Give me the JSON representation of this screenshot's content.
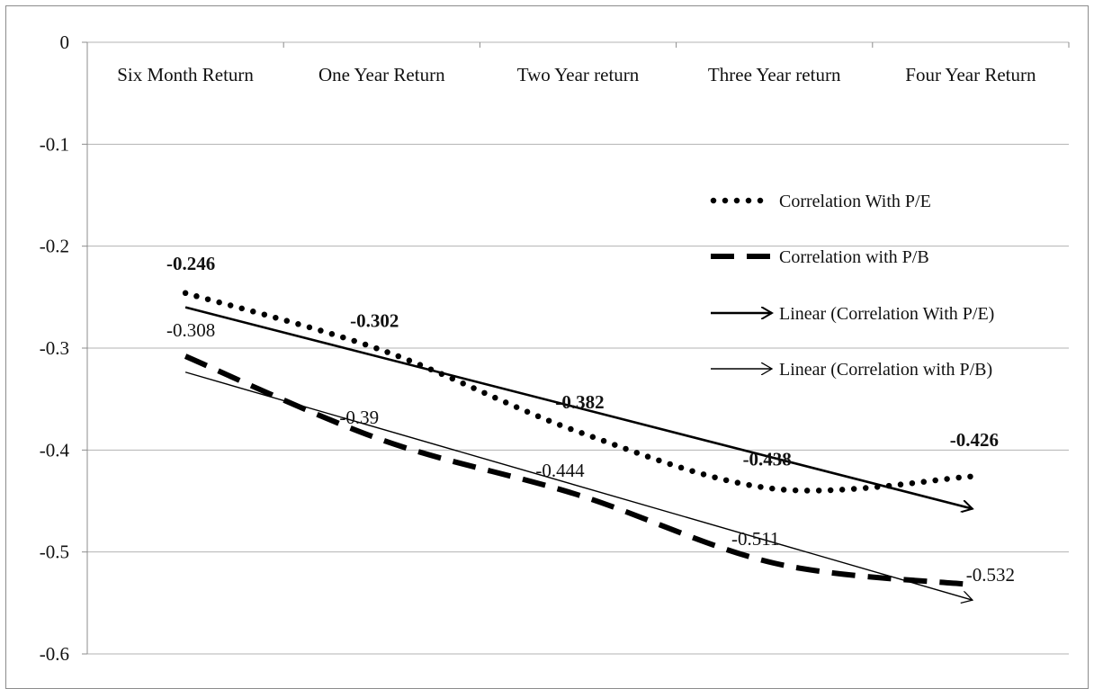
{
  "chart_data": {
    "type": "line",
    "categories": [
      "Six Month Return",
      "One Year Return",
      "Two Year return",
      "Three Year return",
      "Four Year Return"
    ],
    "ylim": [
      -0.6,
      0
    ],
    "yticks": [
      "0",
      "-0.1",
      "-0.2",
      "-0.3",
      "-0.4",
      "-0.5",
      "-0.6"
    ],
    "ytick_values": [
      0,
      -0.1,
      -0.2,
      -0.3,
      -0.4,
      -0.5,
      -0.6
    ],
    "grid": true,
    "legend_position": "right",
    "series": [
      {
        "name": "Correlation With P/E",
        "values": [
          -0.246,
          -0.302,
          -0.382,
          -0.438,
          -0.426
        ],
        "labels": [
          "-0.246",
          "-0.302",
          "-0.382",
          "-0.438",
          "-0.426"
        ],
        "style": "dotted",
        "bold_labels": true
      },
      {
        "name": "Correlation with P/B",
        "values": [
          -0.308,
          -0.39,
          -0.444,
          -0.511,
          -0.532
        ],
        "labels": [
          "-0.308",
          "-0.39",
          "-0.444",
          "-0.511",
          "-0.532"
        ],
        "style": "dashed",
        "bold_labels": false
      }
    ],
    "trendlines": [
      {
        "name": "Linear (Correlation With P/E)",
        "values": [
          -0.26,
          -0.3094,
          -0.3588,
          -0.4082,
          -0.4576
        ],
        "weight": "heavy"
      },
      {
        "name": "Linear (Correlation with P/B)",
        "values": [
          -0.3236,
          -0.3795,
          -0.4354,
          -0.4913,
          -0.5472
        ],
        "weight": "light"
      }
    ]
  },
  "colors": {
    "line": "#000000",
    "grid": "#b3b3b3",
    "axis": "#8c8c8c"
  }
}
